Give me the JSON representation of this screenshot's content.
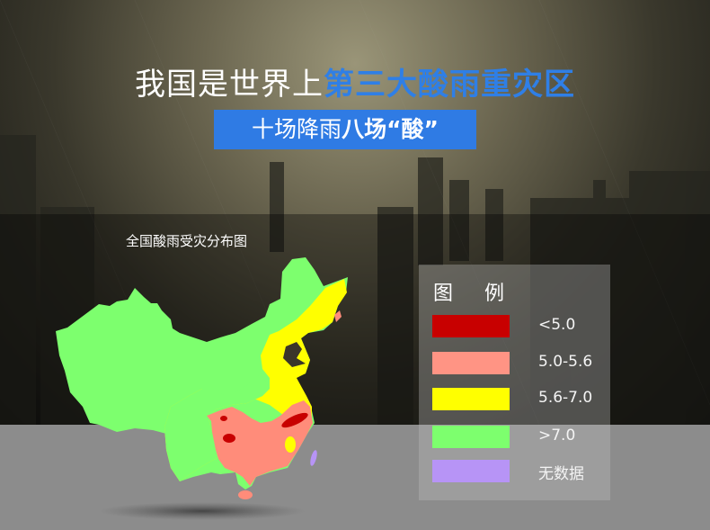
{
  "header": {
    "title_plain": "我国是世界上",
    "title_highlight": "第三大酸雨重灾区",
    "subtitle_plain": "十场降雨",
    "subtitle_bold": "八场“酸”"
  },
  "map": {
    "title": "全国酸雨受灾分布图",
    "colors": {
      "lt5": "#c80000",
      "5to5_6": "#ff8c7a",
      "5_6to7": "#ffff00",
      "gt7": "#7dff6e",
      "nodata": "#b794f6"
    }
  },
  "legend": {
    "title": "图 例",
    "items": [
      {
        "label": "<5.0",
        "color": "#c80000"
      },
      {
        "label": "5.0-5.6",
        "color": "#ff9484"
      },
      {
        "label": "5.6-7.0",
        "color": "#ffff00"
      },
      {
        "label": ">7.0",
        "color": "#7dff6e"
      },
      {
        "label": "无数据",
        "color": "#b794f6"
      }
    ]
  }
}
